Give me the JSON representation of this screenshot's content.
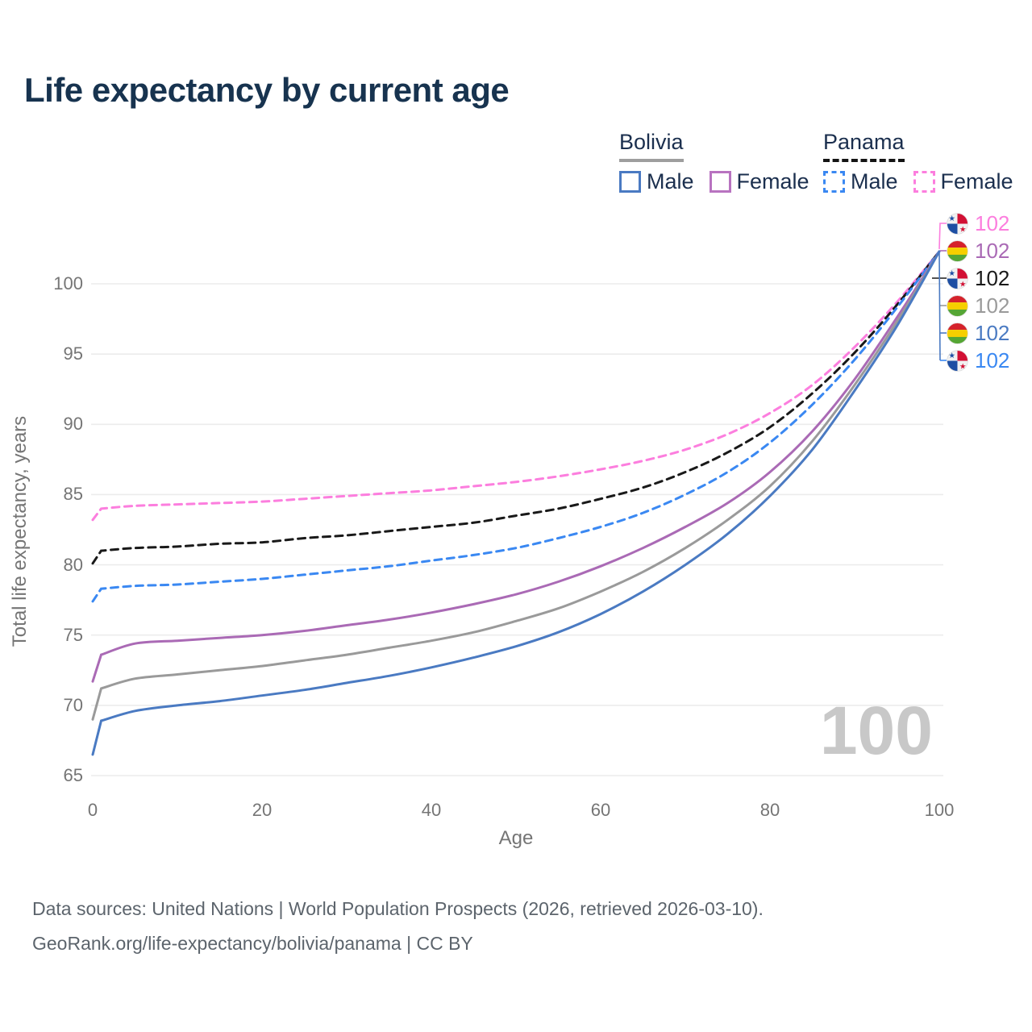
{
  "title": "Life expectancy by current age",
  "watermark": "100",
  "legend": {
    "groups": [
      {
        "label": "Bolivia",
        "line_style": "solid",
        "underline_color": "#9e9e9e",
        "items": [
          {
            "label": "Male",
            "color": "#4a7ac2"
          },
          {
            "label": "Female",
            "color": "#b873c0"
          }
        ]
      },
      {
        "label": "Panama",
        "line_style": "dashed",
        "underline_color": "#141414",
        "items": [
          {
            "label": "Male",
            "color": "#3a88f2"
          },
          {
            "label": "Female",
            "color": "#fc7ede"
          }
        ]
      }
    ]
  },
  "chart_data": {
    "type": "line",
    "title": "Life expectancy by current age",
    "xlabel": "Age",
    "ylabel": "Total life expectancy, years",
    "xlim": [
      0,
      100
    ],
    "ylim": [
      65,
      100
    ],
    "xticks": [
      0,
      20,
      40,
      60,
      80,
      100
    ],
    "yticks": [
      65,
      70,
      75,
      80,
      85,
      90,
      95,
      100
    ],
    "grid": true,
    "legend_position": "top-right",
    "x": [
      0,
      1,
      5,
      10,
      15,
      20,
      25,
      30,
      35,
      40,
      45,
      50,
      55,
      60,
      65,
      70,
      75,
      80,
      85,
      90,
      95,
      100
    ],
    "series": [
      {
        "name": "Panama Female",
        "country": "Panama",
        "sex": "Female",
        "color": "#fc7ede",
        "dash": "dashed",
        "values": [
          83.2,
          84.0,
          84.2,
          84.3,
          84.4,
          84.5,
          84.7,
          84.9,
          85.1,
          85.3,
          85.6,
          85.9,
          86.3,
          86.8,
          87.4,
          88.2,
          89.3,
          90.8,
          92.8,
          95.5,
          98.7,
          102.3
        ]
      },
      {
        "name": "Panama Total",
        "country": "Panama",
        "sex": "Both",
        "color": "#191919",
        "dash": "dashed",
        "values": [
          80.1,
          81.0,
          81.2,
          81.3,
          81.5,
          81.6,
          81.9,
          82.1,
          82.4,
          82.7,
          83.0,
          83.5,
          84.0,
          84.7,
          85.5,
          86.6,
          88.0,
          89.8,
          92.2,
          95.1,
          98.5,
          102.3
        ]
      },
      {
        "name": "Panama Male",
        "country": "Panama",
        "sex": "Male",
        "color": "#3a88f2",
        "dash": "dashed",
        "values": [
          77.4,
          78.3,
          78.5,
          78.6,
          78.8,
          79.0,
          79.3,
          79.6,
          79.9,
          80.3,
          80.7,
          81.2,
          81.9,
          82.7,
          83.7,
          85.0,
          86.6,
          88.7,
          91.4,
          94.6,
          98.3,
          102.3
        ]
      },
      {
        "name": "Bolivia Female",
        "country": "Bolivia",
        "sex": "Female",
        "color": "#aa6ab5",
        "dash": "solid",
        "values": [
          71.7,
          73.6,
          74.4,
          74.6,
          74.8,
          75.0,
          75.3,
          75.7,
          76.1,
          76.6,
          77.2,
          77.9,
          78.8,
          79.9,
          81.2,
          82.7,
          84.4,
          86.6,
          89.5,
          93.2,
          97.6,
          102.3
        ]
      },
      {
        "name": "Bolivia Total",
        "country": "Bolivia",
        "sex": "Both",
        "color": "#9a9a9a",
        "dash": "solid",
        "values": [
          69.0,
          71.2,
          71.9,
          72.2,
          72.5,
          72.8,
          73.2,
          73.6,
          74.1,
          74.6,
          75.2,
          76.0,
          76.9,
          78.1,
          79.5,
          81.2,
          83.2,
          85.6,
          88.8,
          92.8,
          97.3,
          102.3
        ]
      },
      {
        "name": "Bolivia Male",
        "country": "Bolivia",
        "sex": "Male",
        "color": "#4a7ac2",
        "dash": "solid",
        "values": [
          66.5,
          68.9,
          69.6,
          70.0,
          70.3,
          70.7,
          71.1,
          71.6,
          72.1,
          72.7,
          73.4,
          74.2,
          75.2,
          76.5,
          78.1,
          80.0,
          82.2,
          84.9,
          88.2,
          92.4,
          97.0,
          102.3
        ]
      }
    ]
  },
  "end_labels": [
    {
      "flag": "panama",
      "value": "102",
      "color": "#fc7ede"
    },
    {
      "flag": "bolivia",
      "value": "102",
      "color": "#aa6ab5"
    },
    {
      "flag": "panama",
      "value": "102",
      "color": "#191919"
    },
    {
      "flag": "bolivia",
      "value": "102",
      "color": "#9a9a9a"
    },
    {
      "flag": "bolivia",
      "value": "102",
      "color": "#4a7ac2"
    },
    {
      "flag": "panama",
      "value": "102",
      "color": "#3a88f2"
    }
  ],
  "footer": {
    "line1": "Data sources: United Nations | World Population Prospects (2026, retrieved 2026-03-10).",
    "line2": "GeoRank.org/life-expectancy/bolivia/panama | CC BY"
  }
}
